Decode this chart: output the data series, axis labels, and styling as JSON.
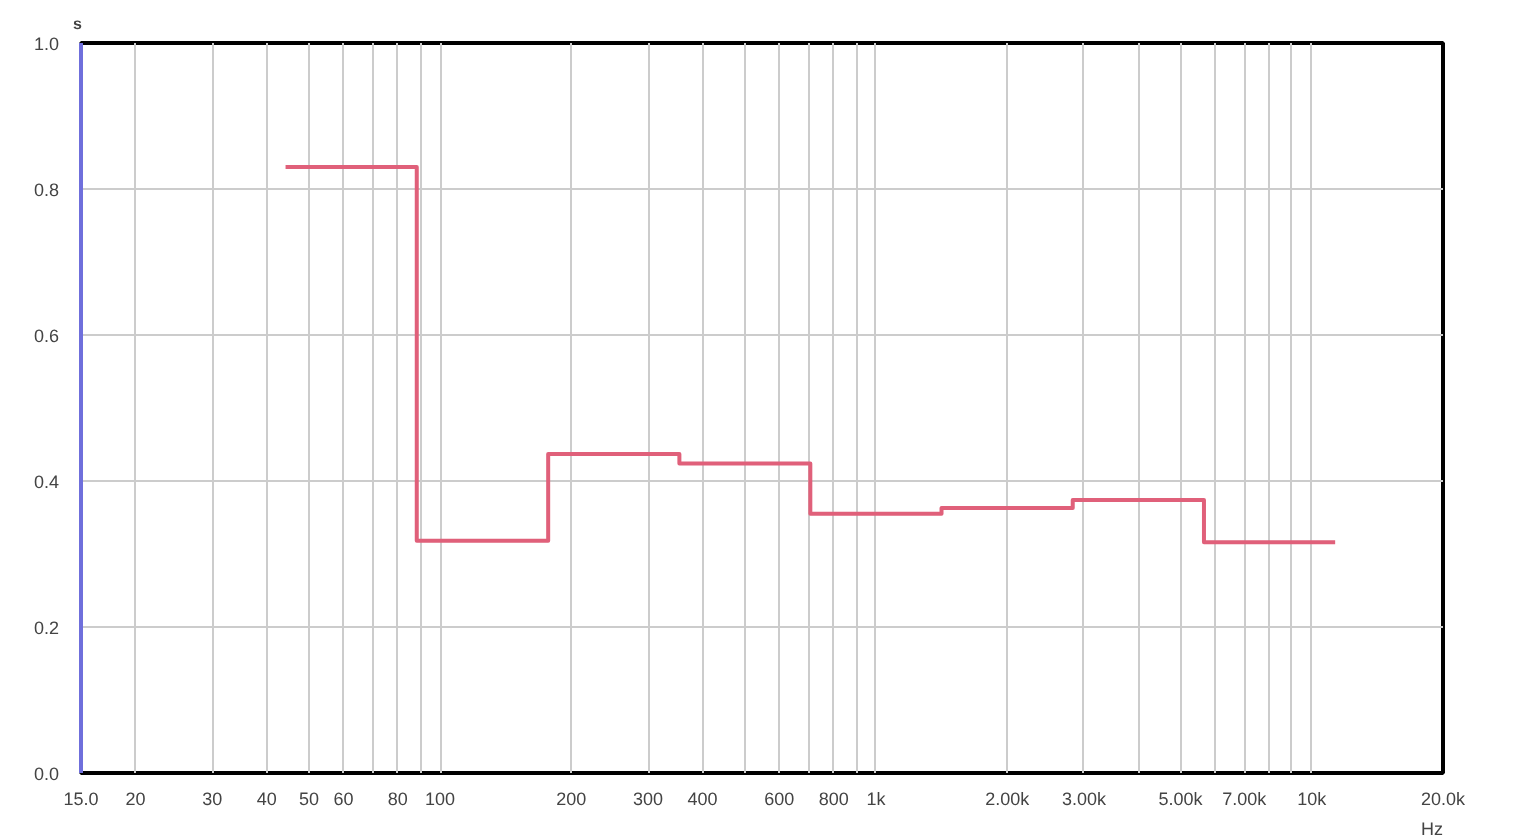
{
  "chart_data": {
    "type": "step",
    "ylabel": "s",
    "x": [
      44.2,
      88.4,
      177,
      354,
      707,
      1414,
      2828,
      5657,
      11314
    ],
    "series": [
      {
        "color": "#e0607a",
        "values": [
          0.83,
          0.318,
          0.437,
          0.424,
          0.355,
          0.363,
          0.374,
          0.316,
          0.316
        ]
      }
    ],
    "log": "x",
    "xlim": [
      15,
      20000
    ],
    "xticks": [
      {
        "value": 15,
        "label": "15.0"
      },
      20,
      30,
      40,
      50,
      60,
      {
        "value": 70,
        "label": null
      },
      80,
      {
        "value": 90,
        "label": null
      },
      100,
      200,
      300,
      400,
      {
        "value": 500,
        "label": null
      },
      600,
      {
        "value": 700,
        "label": null
      },
      800,
      {
        "value": 900,
        "label": null
      },
      {
        "value": 1000,
        "label": "1k"
      },
      {
        "value": 2000,
        "label": "2.00k"
      },
      {
        "value": 3000,
        "label": "3.00k"
      },
      {
        "value": 4000,
        "label": null
      },
      {
        "value": 5000,
        "label": "5.00k"
      },
      {
        "value": 6000,
        "label": null
      },
      {
        "value": 7000,
        "label": "7.00k"
      },
      {
        "value": 8000,
        "label": null
      },
      {
        "value": 9000,
        "label": null
      },
      {
        "value": 10000,
        "label": "10k"
      },
      {
        "value": 20000,
        "label": "20.0k"
      }
    ],
    "xlabel": "Hz",
    "ylim": [
      0,
      1
    ],
    "yticks": [
      {
        "value": 0,
        "label": "0.0"
      },
      0.2,
      0.4,
      0.6,
      0.8,
      {
        "value": 1,
        "label": "1.0"
      }
    ],
    "grid": true
  }
}
